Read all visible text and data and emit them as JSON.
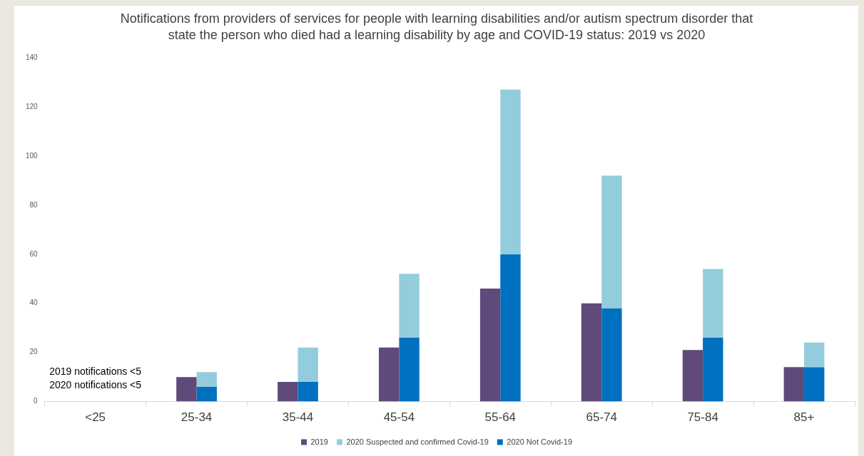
{
  "chart_data": {
    "type": "bar",
    "title": "Notifications from providers of services for people with learning disabilities and/or autism spectrum disorder that state the person who died had a learning disability by age and COVID-19 status: 2019 vs 2020",
    "categories": [
      "<25",
      "25-34",
      "35-44",
      "45-54",
      "55-64",
      "65-74",
      "75-84",
      "85+"
    ],
    "series": [
      {
        "name": "2019",
        "color": "#604a7b",
        "values": [
          null,
          10,
          8,
          22,
          46,
          40,
          21,
          14
        ]
      },
      {
        "name": "2020 Suspected and confirmed Covid-19",
        "color": "#93cddd",
        "values": [
          null,
          6,
          14,
          26,
          67,
          54,
          28,
          10
        ],
        "base": [
          null,
          6,
          8,
          26,
          60,
          38,
          26,
          14
        ]
      },
      {
        "name": "2020 Not Covid-19",
        "color": "#0070c0",
        "values": [
          null,
          6,
          8,
          26,
          60,
          38,
          26,
          14
        ]
      }
    ],
    "ylim": [
      0,
      140
    ],
    "yticks": [
      0,
      20,
      40,
      60,
      80,
      100,
      120,
      140
    ],
    "grid": false,
    "legend": "bottom",
    "annotations": [
      "2019 notifications <5",
      "2020 notifications <5"
    ]
  }
}
